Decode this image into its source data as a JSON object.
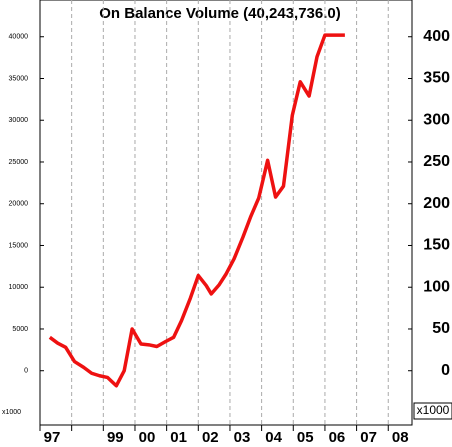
{
  "chart_data": {
    "type": "line",
    "title": "On Balance Volume (40,243,736.0)",
    "y_unit": "x1000",
    "y2_unit": "x1000",
    "x": [
      1997.31,
      1997.56,
      1997.81,
      1998.09,
      1998.38,
      1998.63,
      1998.88,
      1999.13,
      1999.41,
      1999.66,
      1999.91,
      2000.19,
      2000.44,
      2000.69,
      2000.97,
      2001.22,
      2001.47,
      2001.75,
      2002.0,
      2002.25,
      2002.41,
      2002.66,
      2002.88,
      2003.13,
      2003.41,
      2003.66,
      2003.91,
      2004.19,
      2004.44,
      2004.69,
      2004.97,
      2005.22,
      2005.5,
      2005.75,
      2006.0,
      2006.63
    ],
    "series": [
      {
        "name": "On Balance Volume",
        "color": "#ee1111",
        "values": [
          4000,
          3300,
          2800,
          1100,
          400,
          -300,
          -600,
          -800,
          -1800,
          0,
          5000,
          3200,
          3100,
          2900,
          3500,
          4000,
          6000,
          8700,
          11400,
          10200,
          9200,
          10300,
          11600,
          13400,
          16000,
          18500,
          20700,
          25200,
          20800,
          22100,
          30600,
          34600,
          32900,
          37600,
          40200,
          40200
        ]
      }
    ],
    "xlim": [
      1997,
      2008.75
    ],
    "xticks": [
      {
        "value": 1997,
        "label": "97"
      },
      {
        "value": 1998,
        "label": null
      },
      {
        "value": 1999,
        "label": "99"
      },
      {
        "value": 2000,
        "label": "00"
      },
      {
        "value": 2001,
        "label": "01"
      },
      {
        "value": 2002,
        "label": "02"
      },
      {
        "value": 2003,
        "label": "03"
      },
      {
        "value": 2004,
        "label": "04"
      },
      {
        "value": 2005,
        "label": "05"
      },
      {
        "value": 2006,
        "label": "06"
      },
      {
        "value": 2007,
        "label": "07"
      },
      {
        "value": 2008,
        "label": "08"
      }
    ],
    "ylim": [
      -6500,
      44400
    ],
    "yticks": [
      0,
      5000,
      10000,
      15000,
      20000,
      25000,
      30000,
      35000,
      40000
    ],
    "y2lim": [
      -65,
      444
    ],
    "y2ticks": [
      0,
      50,
      100,
      150,
      200,
      250,
      300,
      350,
      400
    ],
    "grid": true
  }
}
